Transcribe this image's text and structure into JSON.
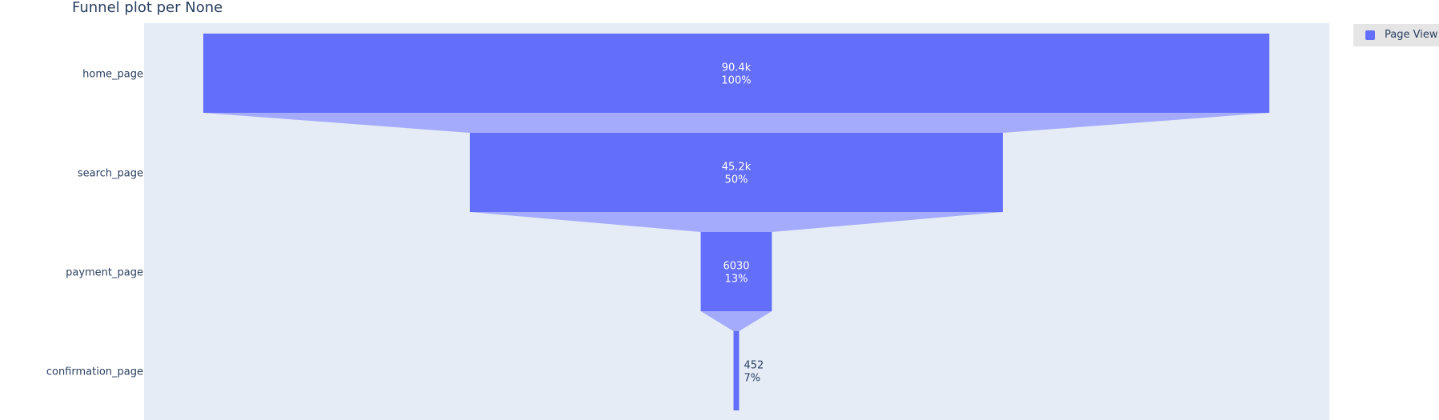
{
  "title": "Funnel plot per None",
  "colors": {
    "bar": "#636efa",
    "connector": "#a5abfc",
    "plot_bg": "#e5ecf6",
    "text_dark": "#2a3f5f",
    "text_light": "#ffffff"
  },
  "legend": {
    "label": "Page View"
  },
  "chart_data": {
    "type": "funnel",
    "title": "Funnel plot per None",
    "categories": [
      "home_page",
      "search_page",
      "payment_page",
      "confirmation_page"
    ],
    "values": [
      90400,
      45200,
      6030,
      452
    ],
    "value_labels": [
      "90.4k",
      "45.2k",
      "6030",
      "452"
    ],
    "percent_labels": [
      "100%",
      "50%",
      "13%",
      "7%"
    ],
    "series": [
      {
        "name": "Page View",
        "values": [
          90400,
          45200,
          6030,
          452
        ]
      }
    ],
    "legend_position": "top-right"
  }
}
